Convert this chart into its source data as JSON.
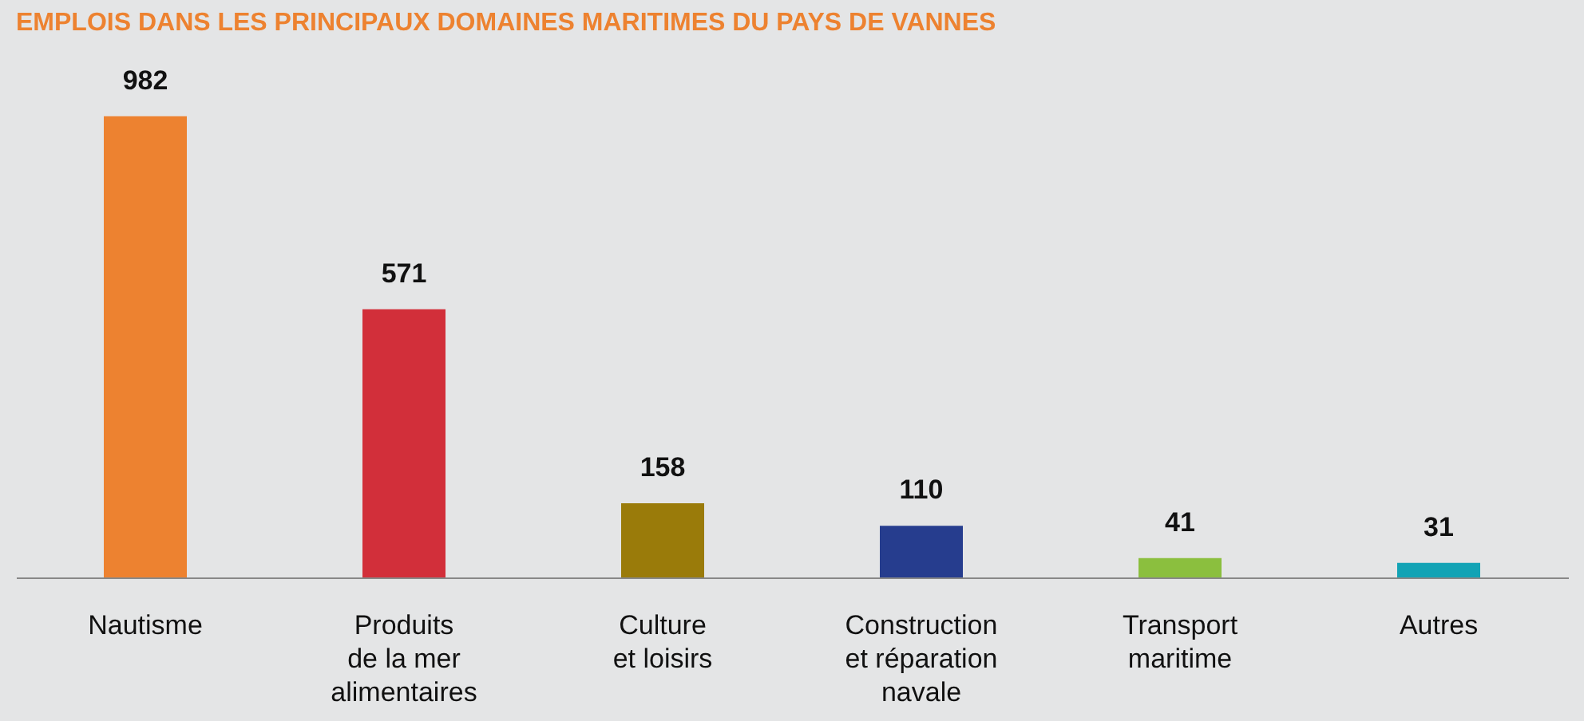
{
  "chart_data": {
    "type": "bar",
    "title": "EMPLOIS DANS LES PRINCIPAUX DOMAINES MARITIMES DU PAYS DE VANNES",
    "categories": [
      "Nautisme",
      "Produits\nde la mer\nalimentaires",
      "Culture\net loisirs",
      "Construction\net réparation\nnavale",
      "Transport\nmaritime",
      "Autres"
    ],
    "values": [
      982,
      571,
      158,
      110,
      41,
      31
    ],
    "colors": [
      "#ed8230",
      "#d22f3a",
      "#9a7b0a",
      "#263d8e",
      "#8bbf3e",
      "#12a3b5"
    ],
    "data_labels": true
  }
}
